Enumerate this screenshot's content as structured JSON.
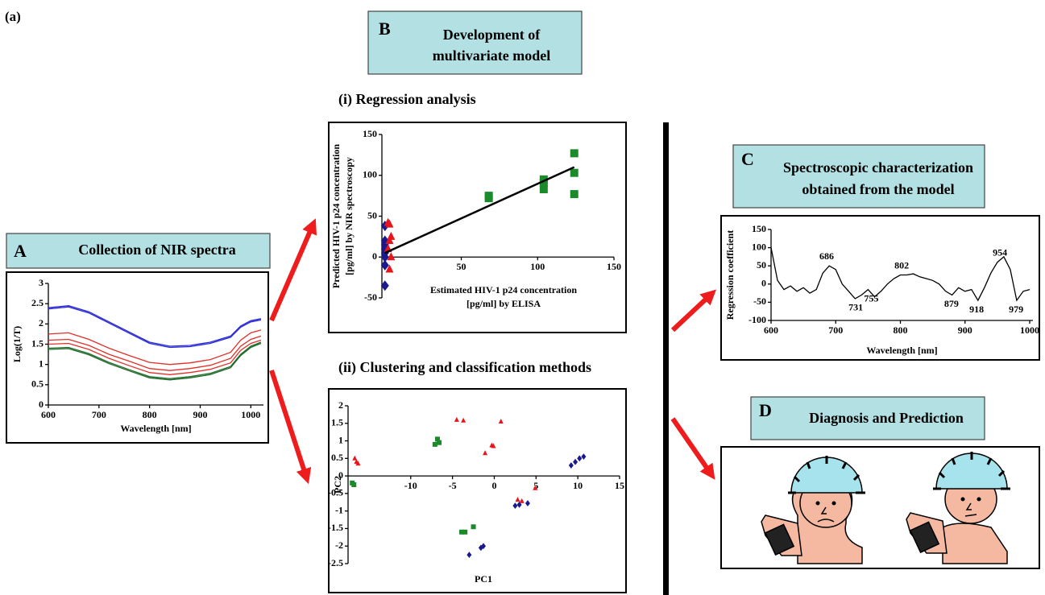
{
  "figure_label": "(a)",
  "panels": {
    "A": {
      "letter": "A",
      "title": "Collection of NIR spectra"
    },
    "B": {
      "letter": "B",
      "title": [
        "Development of",
        "multivariate model"
      ]
    },
    "C": {
      "letter": "C",
      "title": [
        "Spectroscopic characterization",
        "obtained from the model"
      ]
    },
    "D": {
      "letter": "D",
      "title": "Diagnosis and Prediction"
    }
  },
  "chart_data": [
    {
      "type": "line",
      "xlabel": "Wavelength [nm]",
      "ylabel": "Log(1/T)",
      "x": [
        600,
        640,
        680,
        720,
        760,
        800,
        840,
        880,
        920,
        960,
        980,
        1000,
        1020
      ],
      "xlim": [
        600,
        1025
      ],
      "xticks": [
        600,
        700,
        800,
        900,
        1000
      ],
      "ylim": [
        0,
        3
      ],
      "yticks": [
        0,
        0.5,
        1,
        1.5,
        2,
        2.5,
        3
      ],
      "series": [
        {
          "color": "#2b2bd6",
          "values": [
            2.4,
            2.45,
            2.3,
            2.05,
            1.8,
            1.55,
            1.45,
            1.47,
            1.55,
            1.7,
            1.95,
            2.08,
            2.13
          ]
        },
        {
          "color": "#2b2bd6",
          "values": [
            2.37,
            2.42,
            2.27,
            2.02,
            1.77,
            1.52,
            1.42,
            1.44,
            1.52,
            1.67,
            1.92,
            2.05,
            2.1
          ]
        },
        {
          "color": "#e0302a",
          "values": [
            1.75,
            1.78,
            1.62,
            1.4,
            1.22,
            1.05,
            1.0,
            1.04,
            1.12,
            1.3,
            1.6,
            1.78,
            1.85
          ]
        },
        {
          "color": "#e0302a",
          "values": [
            1.6,
            1.62,
            1.47,
            1.25,
            1.08,
            0.9,
            0.85,
            0.9,
            0.98,
            1.15,
            1.45,
            1.62,
            1.7
          ]
        },
        {
          "color": "#e0302a",
          "values": [
            1.5,
            1.52,
            1.37,
            1.15,
            0.97,
            0.8,
            0.75,
            0.8,
            0.88,
            1.04,
            1.35,
            1.52,
            1.6
          ]
        },
        {
          "color": "#1f6b2a",
          "values": [
            1.4,
            1.42,
            1.27,
            1.05,
            0.87,
            0.7,
            0.65,
            0.7,
            0.78,
            0.95,
            1.25,
            1.45,
            1.55
          ]
        },
        {
          "color": "#1f6b2a",
          "values": [
            1.37,
            1.39,
            1.24,
            1.02,
            0.84,
            0.67,
            0.62,
            0.67,
            0.75,
            0.92,
            1.22,
            1.42,
            1.52
          ]
        }
      ]
    },
    {
      "type": "scatter",
      "title": "(i) Regression analysis",
      "xlabel": [
        "Estimated HIV-1 p24 concentration",
        "[pg/ml] by ELISA"
      ],
      "ylabel": [
        "Predicted HIV-1 p24 concentration",
        "[pg/ml] by NIR spectroscopy"
      ],
      "xlim": [
        -2,
        150
      ],
      "xticks": [
        50,
        100,
        150
      ],
      "ylim": [
        -50,
        150
      ],
      "yticks": [
        -50,
        0,
        50,
        100,
        150
      ],
      "series": [
        {
          "color": "#1a1a8c",
          "marker": "diamond",
          "x": [
            0,
            0,
            0,
            0,
            0,
            0,
            0,
            0
          ],
          "values": [
            -35,
            -10,
            0,
            5,
            10,
            15,
            20,
            38
          ]
        },
        {
          "color": "#e8141c",
          "marker": "triangle",
          "x": [
            3,
            4,
            2,
            3,
            4,
            3,
            2
          ],
          "values": [
            -15,
            0,
            10,
            20,
            25,
            40,
            42
          ]
        },
        {
          "color": "#1a8a2a",
          "marker": "square",
          "x": [
            68,
            68,
            104,
            104,
            104,
            124,
            124,
            124
          ],
          "values": [
            72,
            75,
            83,
            91,
            95,
            77,
            103,
            127
          ]
        },
        {
          "color": "#000000",
          "mode": "line",
          "x": [
            0,
            124
          ],
          "values": [
            5,
            110
          ]
        }
      ]
    },
    {
      "type": "scatter",
      "title": "(ii) Clustering and classification methods",
      "xlabel": "PC1",
      "ylabel": "PC2",
      "xlim": [
        -17.5,
        15
      ],
      "xticks": [
        -10,
        -5,
        0,
        5,
        10,
        15
      ],
      "ylim": [
        -2.5,
        2
      ],
      "yticks": [
        -2.5,
        -2,
        -1.5,
        -1,
        -0.5,
        0,
        0.5,
        1,
        1.5,
        2
      ],
      "series": [
        {
          "color": "#e8141c",
          "marker": "triangle",
          "x": [
            -16.7,
            -16.5,
            -16.3,
            -4.5,
            -3.7,
            0.8,
            -0.3,
            -0.1,
            -1.1,
            2.8,
            3.3,
            4.9
          ],
          "values": [
            0.5,
            0.4,
            0.35,
            1.6,
            1.58,
            1.55,
            0.87,
            0.85,
            0.65,
            -0.68,
            -0.72,
            -0.35
          ]
        },
        {
          "color": "#1a8a2a",
          "marker": "square",
          "x": [
            -17,
            -16.8,
            -7.1,
            -6.8,
            -6.6,
            -3.9,
            -3.5,
            -2.5
          ],
          "values": [
            -0.2,
            -0.25,
            0.9,
            1.05,
            0.95,
            -1.6,
            -1.6,
            -1.45
          ]
        },
        {
          "color": "#1a1a8c",
          "marker": "diamond",
          "x": [
            9.2,
            9.7,
            10.2,
            10.7,
            2.5,
            3,
            4,
            -3,
            -1.6,
            -1.3
          ],
          "values": [
            0.3,
            0.4,
            0.5,
            0.55,
            -0.85,
            -0.82,
            -0.78,
            -2.25,
            -2.05,
            -2.0
          ]
        }
      ]
    },
    {
      "type": "line",
      "xlabel": "Wavelength [nm]",
      "ylabel": "Regression coefficient",
      "x": [
        600,
        610,
        620,
        630,
        640,
        650,
        660,
        670,
        680,
        690,
        700,
        710,
        720,
        730,
        740,
        750,
        760,
        770,
        780,
        790,
        800,
        810,
        820,
        830,
        840,
        850,
        860,
        870,
        880,
        890,
        900,
        910,
        920,
        930,
        940,
        950,
        960,
        970,
        980,
        990,
        1000
      ],
      "xlim": [
        600,
        1005
      ],
      "xticks": [
        600,
        700,
        800,
        900,
        1000
      ],
      "ylim": [
        -100,
        150
      ],
      "yticks": [
        -100,
        -50,
        0,
        50,
        100,
        150
      ],
      "peak_labels": [
        686,
        731,
        755,
        802,
        879,
        918,
        954,
        979
      ],
      "series": [
        {
          "color": "#000000",
          "values": [
            100,
            10,
            -15,
            -5,
            -20,
            -10,
            -25,
            -15,
            30,
            50,
            40,
            0,
            -20,
            -40,
            -30,
            -15,
            -35,
            -20,
            0,
            15,
            25,
            25,
            28,
            20,
            15,
            10,
            0,
            -20,
            -30,
            -10,
            -20,
            -15,
            -45,
            -10,
            30,
            60,
            75,
            40,
            -45,
            -20,
            -15
          ]
        }
      ]
    }
  ]
}
